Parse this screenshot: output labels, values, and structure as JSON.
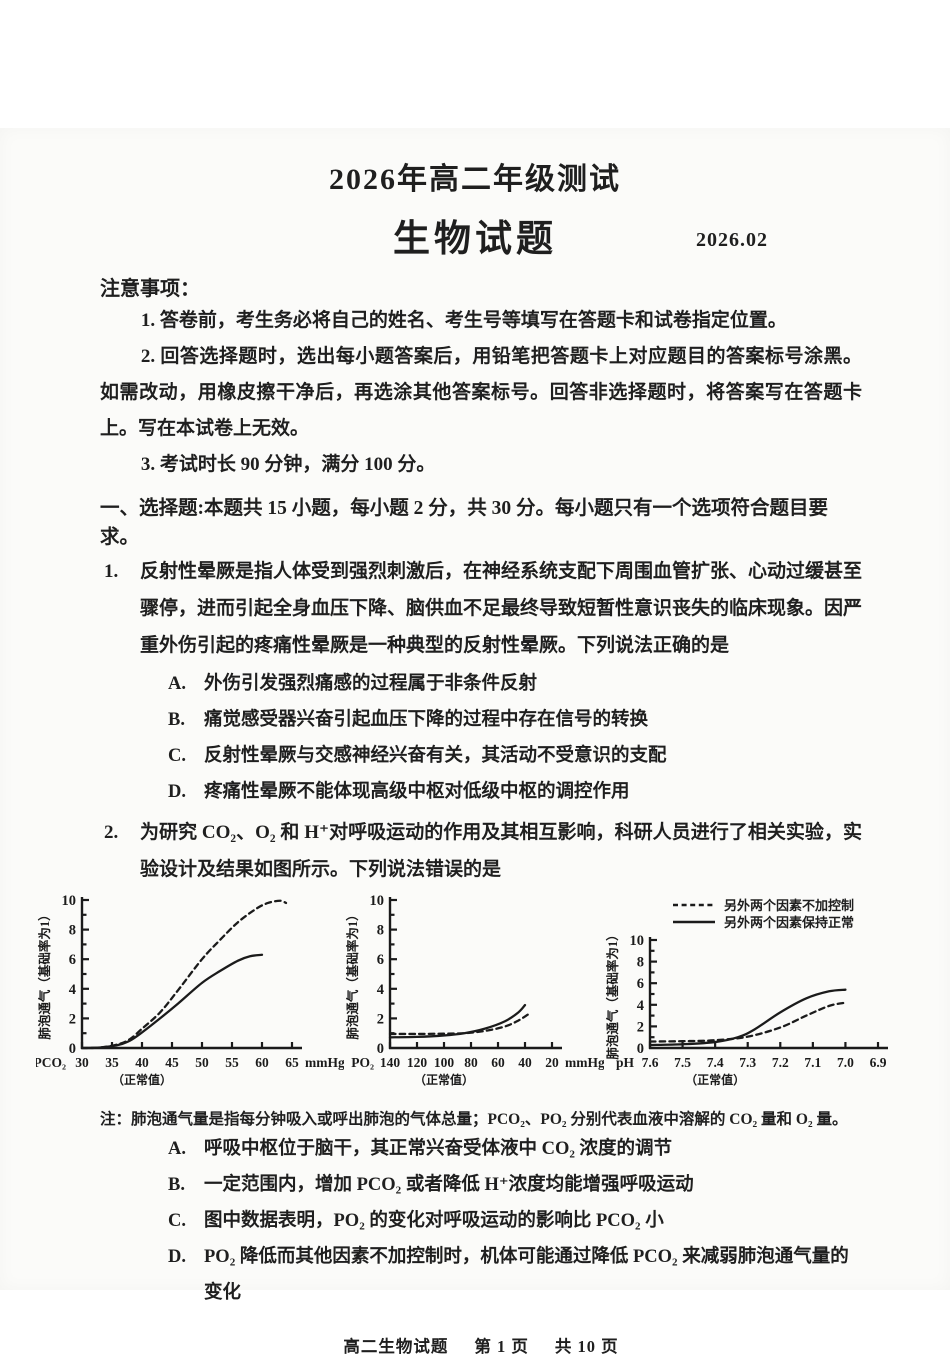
{
  "page": {
    "title_line1": "2026年高二年级测试",
    "title_line2": "生物试题",
    "date": "2026.02"
  },
  "notice": {
    "heading": "注意事项：",
    "items": [
      "1. 答卷前，考生务必将自己的姓名、考生号等填写在答题卡和试卷指定位置。",
      "2. 回答选择题时，选出每小题答案后，用铅笔把答题卡上对应题目的答案标号涂黑。如需改动，用橡皮擦干净后，再选涂其他答案标号。回答非选择题时，将答案写在答题卡上。写在本试卷上无效。",
      "3. 考试时长 90 分钟，满分 100 分。"
    ]
  },
  "section": {
    "heading": "一、选择题:本题共 15 小题，每小题 2 分，共 30 分。每小题只有一个选项符合题目要求。"
  },
  "questions": [
    {
      "number": "1.",
      "stem": "反射性晕厥是指人体受到强烈刺激后，在神经系统支配下周围血管扩张、心动过缓甚至骤停，进而引起全身血压下降、脑供血不足最终导致短暂性意识丧失的临床现象。因严重外伤引起的疼痛性晕厥是一种典型的反射性晕厥。下列说法正确的是",
      "options": [
        {
          "label": "A.",
          "text": "外伤引发强烈痛感的过程属于非条件反射"
        },
        {
          "label": "B.",
          "text": "痛觉感受器兴奋引起血压下降的过程中存在信号的转换"
        },
        {
          "label": "C.",
          "text": "反射性晕厥与交感神经兴奋有关，其活动不受意识的支配"
        },
        {
          "label": "D.",
          "text": "疼痛性晕厥不能体现高级中枢对低级中枢的调控作用"
        }
      ]
    },
    {
      "number": "2.",
      "stem": "为研究 CO₂、O₂ 和 H⁺对呼吸运动的作用及其相互影响，科研人员进行了相关实验，实验设计及结果如图所示。下列说法错误的是",
      "note": "注：肺泡通气量是指每分钟吸入或呼出肺泡的气体总量；PCO₂、PO₂ 分别代表血液中溶解的 CO₂ 量和 O₂ 量。",
      "options": [
        {
          "label": "A.",
          "text": "呼吸中枢位于脑干，其正常兴奋受体液中 CO₂ 浓度的调节"
        },
        {
          "label": "B.",
          "text": "一定范围内，增加 PCO₂ 或者降低 H⁺浓度均能增强呼吸运动"
        },
        {
          "label": "C.",
          "text": "图中数据表明，PO₂ 的变化对呼吸运动的影响比 PCO₂ 小"
        },
        {
          "label": "D.",
          "text": "PO₂ 降低而其他因素不加控制时，机体可能通过降低 PCO₂ 来减弱肺泡通气量的变化"
        }
      ]
    }
  ],
  "chart_data": [
    {
      "type": "line",
      "ylabel": "肺泡通气（基础率为1）",
      "ylim": [
        0,
        10
      ],
      "yticks": [
        0,
        2,
        4,
        6,
        8,
        10
      ],
      "xprefix": "PCO₂",
      "xsuffix": "mmHg",
      "xlim": [
        30,
        65
      ],
      "xticks": [
        "30",
        "35",
        "40",
        "45",
        "50",
        "55",
        "60",
        "65"
      ],
      "normal_tick": 40,
      "normal_label": "（正常值）",
      "grid": false,
      "series": [
        {
          "name": "另外两个因素不加控制",
          "style": "dashed",
          "points": [
            [
              30,
              0
            ],
            [
              33,
              0.03
            ],
            [
              36,
              0.25
            ],
            [
              38,
              0.6
            ],
            [
              40,
              1.3
            ],
            [
              43,
              2.4
            ],
            [
              46,
              3.9
            ],
            [
              50,
              6.0
            ],
            [
              53,
              7.3
            ],
            [
              56,
              8.5
            ],
            [
              59,
              9.4
            ],
            [
              61,
              9.8
            ],
            [
              63,
              9.95
            ],
            [
              64,
              9.8
            ]
          ]
        },
        {
          "name": "另外两个因素保持正常",
          "style": "solid",
          "points": [
            [
              30,
              0
            ],
            [
              33,
              0.03
            ],
            [
              36,
              0.2
            ],
            [
              38,
              0.5
            ],
            [
              40,
              1.05
            ],
            [
              43,
              2.0
            ],
            [
              46,
              3.0
            ],
            [
              50,
              4.4
            ],
            [
              53,
              5.2
            ],
            [
              56,
              5.9
            ],
            [
              58,
              6.2
            ],
            [
              60,
              6.3
            ]
          ]
        }
      ]
    },
    {
      "type": "line",
      "ylabel": "肺泡通气（基础率为1）",
      "ylim": [
        0,
        10
      ],
      "yticks": [
        0,
        2,
        4,
        6,
        8,
        10
      ],
      "xprefix": "PO₂",
      "xsuffix": "mmHg",
      "xlim": [
        140,
        20
      ],
      "xticks": [
        "140",
        "120",
        "100",
        "80",
        "60",
        "40",
        "20"
      ],
      "normal_tick": 100,
      "normal_label": "（正常值）",
      "grid": false,
      "series": [
        {
          "name": "另外两个因素不加控制",
          "style": "dashed",
          "points": [
            [
              140,
              0.95
            ],
            [
              120,
              0.95
            ],
            [
              100,
              0.97
            ],
            [
              85,
              1.0
            ],
            [
              70,
              1.15
            ],
            [
              55,
              1.45
            ],
            [
              45,
              1.85
            ],
            [
              38,
              2.25
            ]
          ]
        },
        {
          "name": "另外两个因素保持正常",
          "style": "solid",
          "points": [
            [
              140,
              0.72
            ],
            [
              120,
              0.75
            ],
            [
              100,
              0.85
            ],
            [
              85,
              1.0
            ],
            [
              70,
              1.3
            ],
            [
              55,
              1.8
            ],
            [
              45,
              2.4
            ],
            [
              40,
              2.9
            ]
          ]
        }
      ]
    },
    {
      "type": "line",
      "ylabel": "肺泡通气（基础率为1）",
      "ylim": [
        0,
        10
      ],
      "yticks": [
        0,
        2,
        4,
        6,
        8,
        10
      ],
      "xprefix": "pH",
      "xsuffix": "",
      "xlim": [
        7.6,
        6.9
      ],
      "xticks": [
        "7.6",
        "7.5",
        "7.4",
        "7.3",
        "7.2",
        "7.1",
        "7.0",
        "6.9"
      ],
      "normal_tick": 7.4,
      "normal_label": "（正常值）",
      "grid": false,
      "series": [
        {
          "name": "另外两个因素不加控制",
          "style": "dashed",
          "points": [
            [
              7.6,
              0.6
            ],
            [
              7.5,
              0.63
            ],
            [
              7.4,
              0.72
            ],
            [
              7.3,
              1.05
            ],
            [
              7.2,
              1.9
            ],
            [
              7.12,
              3.0
            ],
            [
              7.05,
              3.9
            ],
            [
              7.0,
              4.2
            ]
          ]
        },
        {
          "name": "另外两个因素保持正常",
          "style": "solid",
          "points": [
            [
              7.6,
              0.28
            ],
            [
              7.5,
              0.35
            ],
            [
              7.4,
              0.55
            ],
            [
              7.33,
              1.0
            ],
            [
              7.28,
              1.7
            ],
            [
              7.2,
              3.3
            ],
            [
              7.12,
              4.6
            ],
            [
              7.05,
              5.25
            ],
            [
              7.0,
              5.4
            ]
          ]
        }
      ]
    }
  ],
  "footer": {
    "doc": "高二生物试题",
    "page": "第 1 页",
    "total": "共 10 页"
  },
  "colors": {
    "ink": "#1b1b1b",
    "paper": "#fbfbf9"
  }
}
